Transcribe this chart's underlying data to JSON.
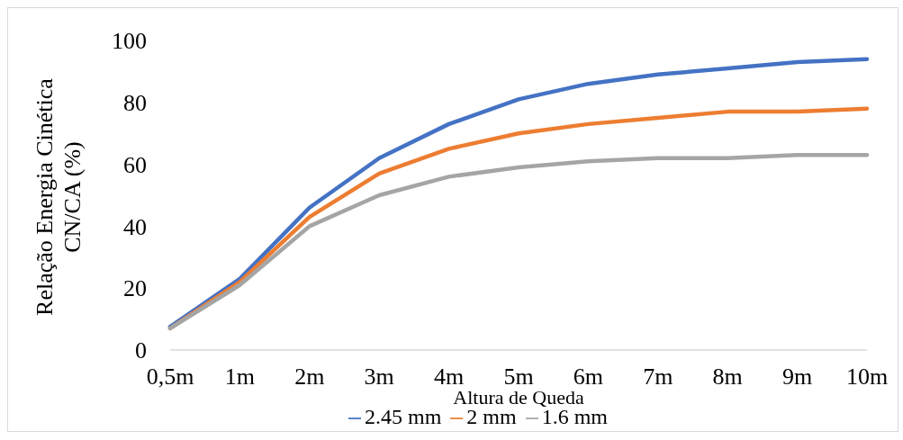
{
  "chart_data": {
    "type": "line",
    "xlabel": "Altura de Queda",
    "ylabel": "Relação Energia Cinética CN/CA (%)",
    "categories": [
      "0,5m",
      "1m",
      "2m",
      "3m",
      "4m",
      "5m",
      "6m",
      "7m",
      "8m",
      "9m",
      "10m"
    ],
    "series": [
      {
        "name": "2.45 mm",
        "color": "#4472c4",
        "values": [
          7.5,
          23,
          46,
          62,
          73,
          81,
          86,
          89,
          91,
          93,
          94
        ]
      },
      {
        "name": "2 mm",
        "color": "#ed7d31",
        "values": [
          7,
          22,
          43,
          57,
          65,
          70,
          73,
          75,
          77,
          77,
          78
        ]
      },
      {
        "name": "1.6 mm",
        "color": "#a5a5a5",
        "values": [
          7,
          21,
          40,
          50,
          56,
          59,
          61,
          62,
          62,
          63,
          63
        ]
      }
    ],
    "ylim": [
      0,
      100
    ],
    "yticks": [
      0,
      20,
      40,
      60,
      80,
      100
    ],
    "grid": false,
    "legend": "bottom",
    "marker": "none",
    "line_style": "solid"
  }
}
